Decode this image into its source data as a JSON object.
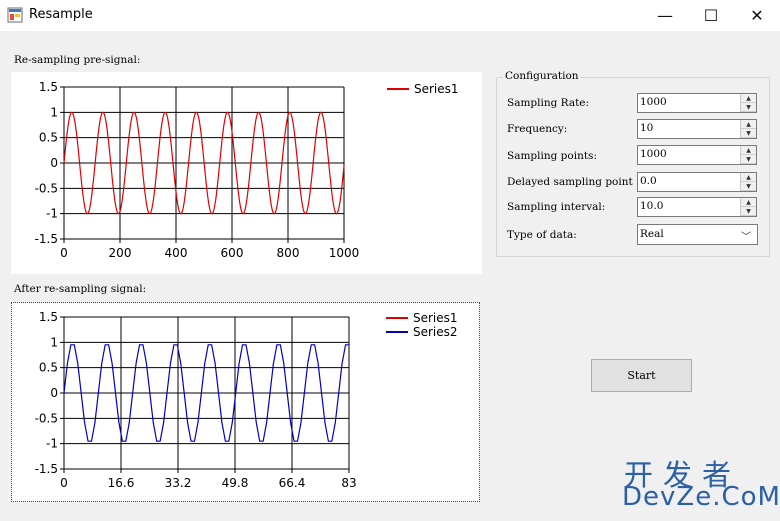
{
  "window": {
    "title": "Resample",
    "minimize": "—",
    "maximize": "☐",
    "close": "✕"
  },
  "pre_label": "Re-sampling pre-signal:",
  "post_label": "After re-sampling signal:",
  "config": {
    "group_title": "Configuration",
    "rows": [
      {
        "label": "Sampling Rate:",
        "value": "1000"
      },
      {
        "label": "Frequency:",
        "value": "10"
      },
      {
        "label": "Sampling points:",
        "value": "1000"
      },
      {
        "label": "Delayed sampling point",
        "value": "0.0"
      },
      {
        "label": "Sampling interval:",
        "value": "10.0"
      }
    ],
    "type_label": "Type of data:",
    "type_value": "Real"
  },
  "start_label": "Start",
  "watermark": {
    "line1": "开发者",
    "line2": "DevZe.CoM"
  },
  "colors": {
    "series1": "#e00000",
    "series2": "#0000c8"
  },
  "chart_data": [
    {
      "type": "line",
      "title": "",
      "xlim": [
        0,
        1000
      ],
      "ylim": [
        -1.5,
        1.5
      ],
      "x_ticks": [
        "0",
        "200",
        "400",
        "600",
        "800",
        "1000"
      ],
      "y_ticks": [
        "1.5",
        "1",
        "0.5",
        "0",
        "-0.5",
        "-1",
        "-1.5"
      ],
      "grid": true,
      "legend": "top-right",
      "series": [
        {
          "name": "Series1",
          "function": "sin",
          "amplitude": 1,
          "cycles": 9,
          "points": 1000
        }
      ]
    },
    {
      "type": "line",
      "title": "",
      "xlim": [
        0,
        83
      ],
      "ylim": [
        -1.5,
        1.5
      ],
      "x_ticks": [
        "0",
        "16.6",
        "33.2",
        "49.8",
        "66.4",
        "83"
      ],
      "y_ticks": [
        "1.5",
        "1",
        "0.5",
        "0",
        "-0.5",
        "-1",
        "-1.5"
      ],
      "grid": true,
      "legend": "top-right",
      "series": [
        {
          "name": "Series1",
          "points": 0
        },
        {
          "name": "Series2",
          "function": "sin",
          "amplitude": 1,
          "cycles": 8.4,
          "points": 84
        }
      ]
    }
  ]
}
